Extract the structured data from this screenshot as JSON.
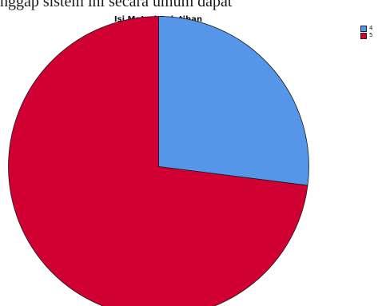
{
  "page": {
    "top_text": "nggap sistem ini secara umum dapat"
  },
  "chart_data": {
    "type": "pie",
    "title": "Isi Materi Pelatihan",
    "legend_position": "top-right",
    "slices": [
      {
        "label": "4",
        "value": 27,
        "color": "#5696e8"
      },
      {
        "label": "5",
        "value": 73,
        "color": "#d10032"
      }
    ],
    "start": "12 o'clock",
    "direction": "clockwise"
  }
}
